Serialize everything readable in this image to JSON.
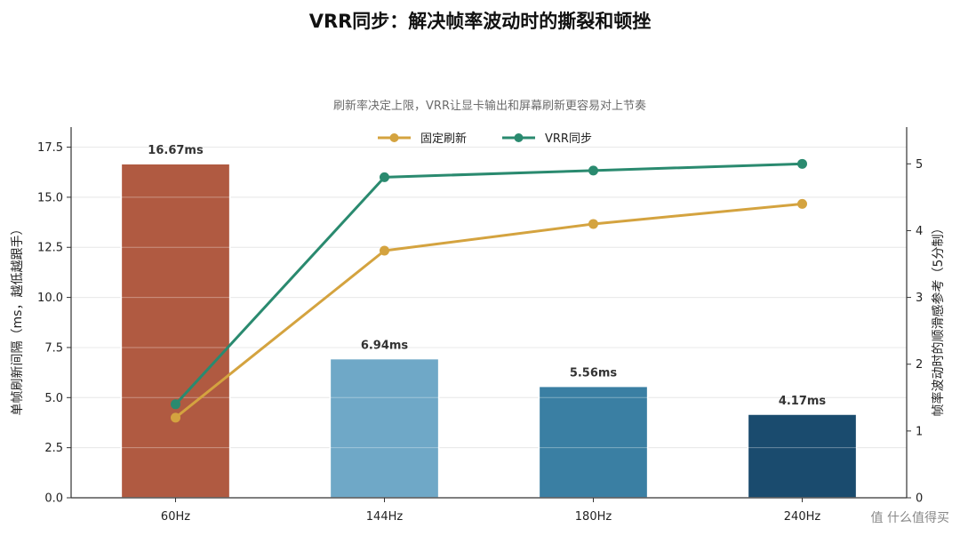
{
  "chart_data": {
    "type": "bar",
    "title": "VRR同步：解决帧率波动时的撕裂和顿挫",
    "subtitle": "刷新率决定上限，VRR让显卡输出和屏幕刷新更容易对上节奏",
    "categories": [
      "60Hz",
      "144Hz",
      "180Hz",
      "240Hz"
    ],
    "bars": {
      "ylabel": "单帧刷新间隔（ms，越低越跟手）",
      "ylim": [
        0,
        18.5
      ],
      "yticks": [
        "0.0",
        "2.5",
        "5.0",
        "7.5",
        "10.0",
        "12.5",
        "15.0",
        "17.5"
      ],
      "ytick_values": [
        0,
        2.5,
        5,
        7.5,
        10,
        12.5,
        15,
        17.5
      ],
      "values": [
        16.67,
        6.94,
        5.56,
        4.17
      ],
      "labels": [
        "16.67ms",
        "6.94ms",
        "5.56ms",
        "4.17ms"
      ],
      "colors": [
        "#b05a41",
        "#6fa8c7",
        "#3a7fa3",
        "#1a4b6e"
      ]
    },
    "lines": {
      "ylabel": "帧率波动时的顺滑感参考（5分制）",
      "ylim": [
        0,
        5.55
      ],
      "yticks": [
        "0",
        "1",
        "2",
        "3",
        "4",
        "5"
      ],
      "ytick_values": [
        0,
        1,
        2,
        3,
        4,
        5
      ],
      "series": [
        {
          "name": "固定刷新",
          "values": [
            1.2,
            3.7,
            4.1,
            4.4
          ],
          "color": "#d4a33f"
        },
        {
          "name": "VRR同步",
          "values": [
            1.4,
            4.8,
            4.9,
            5.0
          ],
          "color": "#2a8a6f"
        }
      ]
    },
    "grid": true,
    "legend_position": "top-center"
  },
  "watermark": "值 什么值得买",
  "colors": {
    "bar_edge": "#ffffff",
    "axis": "#333333",
    "grid": "#dddddd"
  }
}
